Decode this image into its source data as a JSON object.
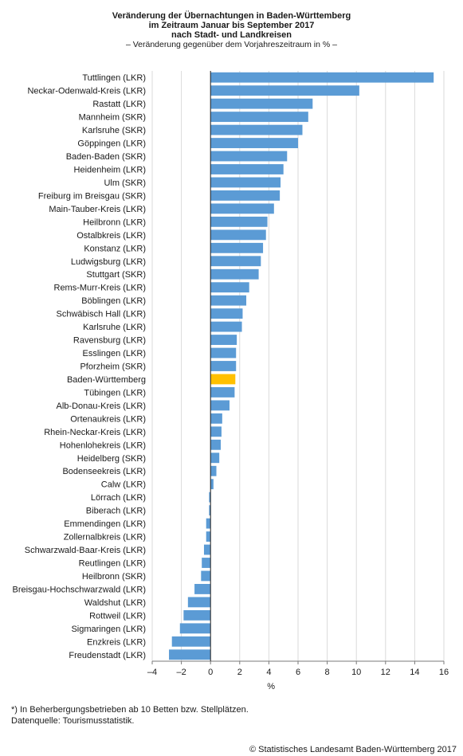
{
  "chart_data": {
    "type": "bar",
    "orientation": "horizontal",
    "title_lines": [
      "Veränderung der Übernachtungen in Baden-Württemberg",
      "im Zeitraum Januar bis September 2017",
      "nach Stadt- und Landkreisen"
    ],
    "subtitle": "– Veränderung gegenüber dem Vorjahreszeitraum in % –",
    "xlabel": "%",
    "xlim": [
      -4,
      16
    ],
    "xticks": [
      -4,
      -2,
      0,
      2,
      4,
      6,
      8,
      10,
      12,
      14,
      16
    ],
    "xtick_labels": [
      "–4",
      "–2",
      "0",
      "2",
      "4",
      "6",
      "8",
      "10",
      "12",
      "14",
      "16"
    ],
    "grid": "vertical",
    "bar_color": "#5b9bd5",
    "highlight_color": "#ffc000",
    "highlight_category": "Baden-Württemberg",
    "categories": [
      "Tuttlingen (LKR)",
      "Neckar-Odenwald-Kreis (LKR)",
      "Rastatt (LKR)",
      "Mannheim (SKR)",
      "Karlsruhe (SKR)",
      "Göppingen (LKR)",
      "Baden-Baden (SKR)",
      "Heidenheim (LKR)",
      "Ulm (SKR)",
      "Freiburg im Breisgau (SKR)",
      "Main-Tauber-Kreis (LKR)",
      "Heilbronn (LKR)",
      "Ostalbkreis (LKR)",
      "Konstanz (LKR)",
      "Ludwigsburg (LKR)",
      "Stuttgart (SKR)",
      "Rems-Murr-Kreis  (LKR)",
      "Böblingen (LKR)",
      "Schwäbisch Hall (LKR)",
      "Karlsruhe (LKR)",
      "Ravensburg (LKR)",
      "Esslingen (LKR)",
      "Pforzheim (SKR)",
      "Baden-Württemberg",
      "Tübingen (LKR)",
      "Alb-Donau-Kreis (LKR)",
      "Ortenaukreis (LKR)",
      "Rhein-Neckar-Kreis (LKR)",
      "Hohenlohekreis (LKR)",
      "Heidelberg (SKR)",
      "Bodenseekreis (LKR)",
      "Calw (LKR)",
      "Lörrach (LKR)",
      "Biberach (LKR)",
      "Emmendingen (LKR)",
      "Zollernalbkreis (LKR)",
      "Schwarzwald-Baar-Kreis (LKR)",
      "Reutlingen (LKR)",
      "Heilbronn (SKR)",
      "Breisgau-Hochschwarzwald (LKR)",
      "Waldshut (LKR)",
      "Rottweil (LKR)",
      "Sigmaringen (LKR)",
      "Enzkreis (LKR)",
      "Freudenstadt (LKR)"
    ],
    "values": [
      15.3,
      10.2,
      7.0,
      6.7,
      6.3,
      6.0,
      5.25,
      5.0,
      4.8,
      4.75,
      4.35,
      3.9,
      3.8,
      3.6,
      3.45,
      3.3,
      2.65,
      2.45,
      2.2,
      2.15,
      1.8,
      1.75,
      1.75,
      1.7,
      1.65,
      1.3,
      0.8,
      0.75,
      0.7,
      0.6,
      0.4,
      0.2,
      -0.1,
      -0.1,
      -0.3,
      -0.3,
      -0.45,
      -0.6,
      -0.65,
      -1.1,
      -1.55,
      -1.85,
      -2.1,
      -2.65,
      -2.85
    ]
  },
  "footnotes": [
    "*) In Beherbergungsbetrieben ab 10 Betten bzw. Stellplätzen.",
    "Datenquelle: Tourismusstatistik."
  ],
  "credit": "© Statistisches Landesamt Baden-Württemberg 2017"
}
